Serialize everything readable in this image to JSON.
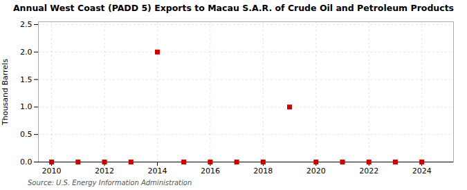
{
  "chart_data": {
    "type": "scatter",
    "title": "Annual West Coast (PADD 5) Exports to Macau S.A.R. of Crude Oil and Petroleum Products",
    "ylabel": "Thousand Barrels",
    "caption": "Source: U.S. Energy Information Administration",
    "x": [
      2010,
      2011,
      2012,
      2013,
      2014,
      2015,
      2016,
      2017,
      2018,
      2019,
      2020,
      2021,
      2022,
      2023,
      2024
    ],
    "values": [
      0.0,
      0.0,
      0.0,
      0.0,
      2.0,
      0.0,
      0.0,
      0.0,
      0.0,
      1.0,
      0.0,
      0.0,
      0.0,
      0.0,
      0.0
    ],
    "color": "#cc0000",
    "marker": "square",
    "xlim": [
      2009.5,
      2025.2
    ],
    "ylim": [
      0.0,
      2.55
    ],
    "xticks": [
      2010,
      2012,
      2014,
      2016,
      2018,
      2020,
      2022,
      2024
    ],
    "yticks": [
      {
        "value": 0,
        "label": "0.0"
      },
      0.5,
      {
        "value": 1,
        "label": "1.0"
      },
      1.5,
      {
        "value": 2,
        "label": "2.0"
      },
      2.5
    ],
    "grid": true
  }
}
